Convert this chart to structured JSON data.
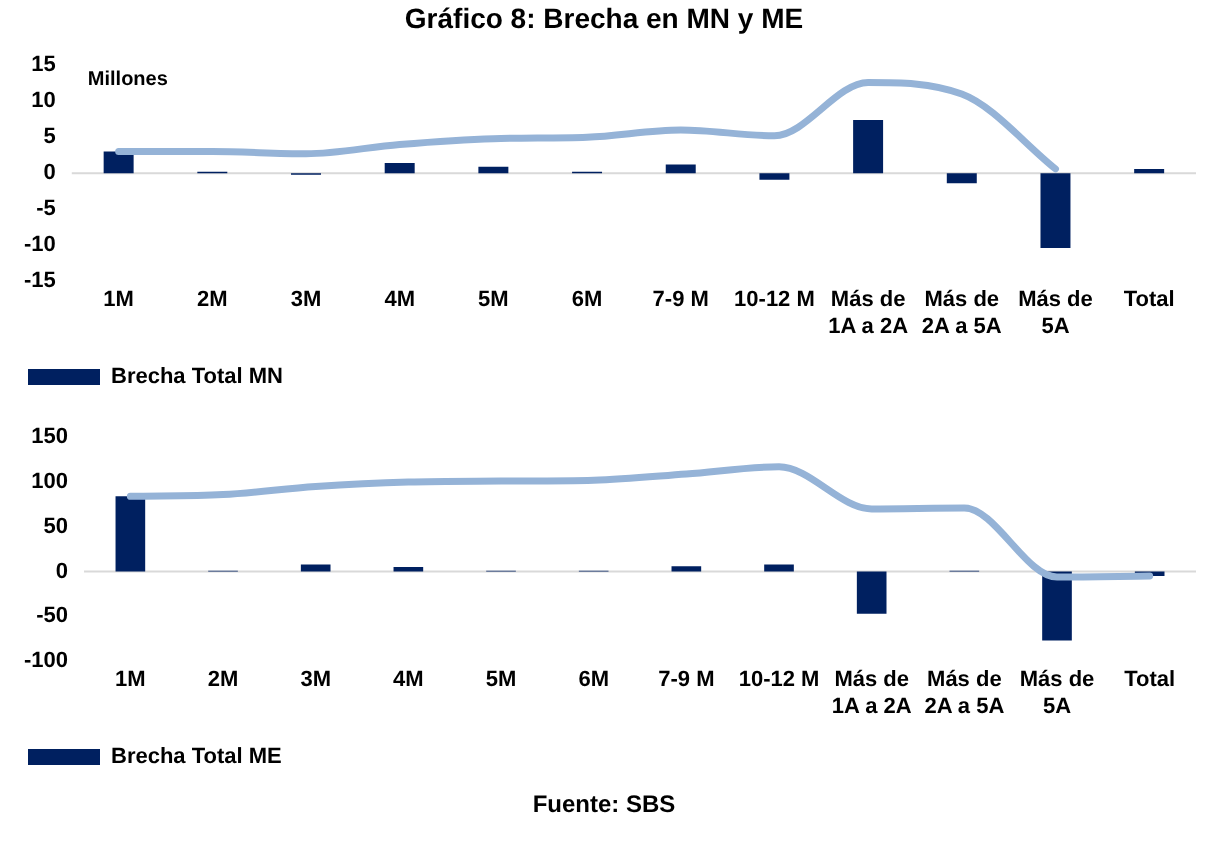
{
  "chart_data": [
    {
      "type": "bar",
      "title": "Gráfico 8: Brecha en MN y ME",
      "ylabel": "Millones",
      "categories": [
        "1M",
        "2M",
        "3M",
        "4M",
        "5M",
        "6M",
        "7-9 M",
        "10-12 M",
        "Más de 1A a 2A",
        "Más de 2A a 5A",
        "Más de 5A",
        "Total"
      ],
      "series": [
        {
          "name": "Brecha Total MN",
          "color": "#002060",
          "values": [
            3,
            0.2,
            -0.2,
            1.4,
            0.9,
            0.2,
            1.2,
            -0.9,
            7.4,
            -1.4,
            -10.4,
            0.6
          ]
        },
        {
          "type": "line",
          "color": "#95b3d7",
          "values": [
            3,
            3,
            2.7,
            4,
            4.8,
            5,
            6,
            5.2,
            12.6,
            11,
            0.6,
            null
          ]
        }
      ],
      "ylim": [
        -15,
        15
      ],
      "yticks": [
        -15,
        -10,
        -5,
        0,
        5,
        10,
        15
      ],
      "grid": false,
      "ref_lines": [
        {
          "axis": "y",
          "value": 0,
          "color": "#d9d9d9"
        }
      ],
      "legend": "bottom left",
      "marker": "none"
    },
    {
      "type": "bar",
      "categories": [
        "1M",
        "2M",
        "3M",
        "4M",
        "5M",
        "6M",
        "7-9 M",
        "10-12 M",
        "Más de 1A a 2A",
        "Más de 2A a 5A",
        "Más de 5A",
        "Total"
      ],
      "series": [
        {
          "name": "Brecha Total ME",
          "color": "#002060",
          "values": [
            84,
            1,
            8,
            5,
            1,
            1,
            6,
            8,
            -47,
            1,
            -77,
            -5
          ]
        },
        {
          "type": "line",
          "color": "#95b3d7",
          "values": [
            84,
            86,
            95,
            100,
            101,
            102,
            109,
            117,
            70,
            71,
            -6,
            -5
          ]
        }
      ],
      "ylim": [
        -100,
        150
      ],
      "yticks": [
        -100,
        -50,
        0,
        50,
        100,
        150
      ],
      "grid": false,
      "ref_lines": [
        {
          "axis": "y",
          "value": 0,
          "color": "#d9d9d9"
        }
      ],
      "legend": "bottom left",
      "marker": "none",
      "annotations": [
        "Fuente: SBS"
      ]
    }
  ]
}
